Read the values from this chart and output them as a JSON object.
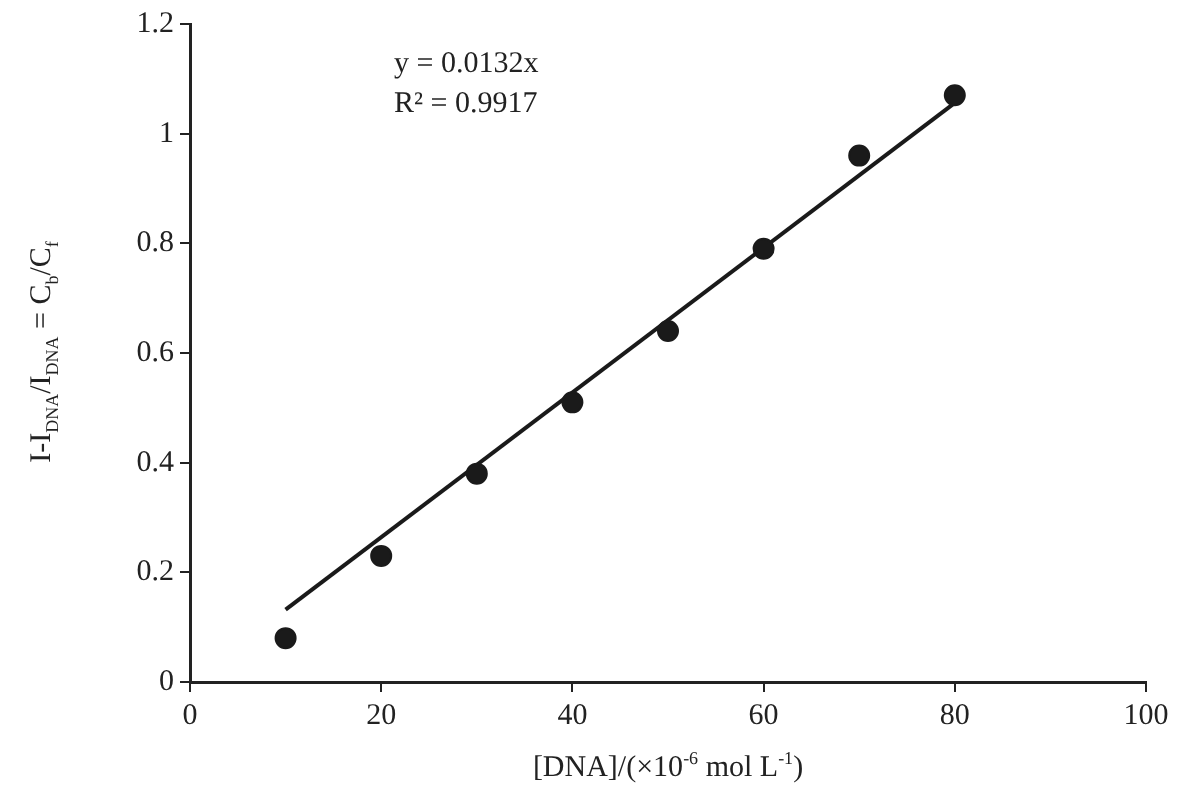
{
  "chart_data": {
    "type": "scatter",
    "xlabel": "[DNA]/(×10$^{-6}$ mol L$^{-1}$)",
    "ylabel": "I-I$_{DNA}$/I$_{DNA}$ = C$_{b}$/C$_{f}$",
    "x": [
      10,
      20,
      30,
      40,
      50,
      60,
      70,
      80
    ],
    "series": [
      {
        "color": "#1a1a1a",
        "values": [
          0.08,
          0.23,
          0.38,
          0.51,
          0.64,
          0.79,
          0.96,
          1.07
        ]
      },
      {
        "type": "line",
        "marker": "none",
        "color": "#1a1a1a",
        "x": [
          10,
          80
        ],
        "values": [
          0.132,
          1.056
        ]
      }
    ],
    "xlim": [
      0,
      100
    ],
    "xticks": [
      0,
      20,
      40,
      60,
      80,
      100
    ],
    "ylim": [
      0,
      1.2
    ],
    "yticks": [
      0,
      0.2,
      0.4,
      0.6,
      0.8,
      1,
      1.2
    ],
    "grid": false,
    "legend": false,
    "marker": "circle",
    "line_style": "solid",
    "annotations": [
      "y = 0.0132x",
      "R² = 0.9917"
    ]
  }
}
